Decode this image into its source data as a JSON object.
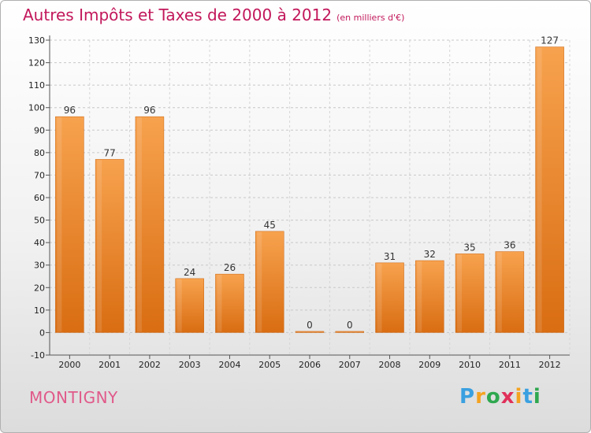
{
  "chart_data": {
    "type": "bar",
    "title": "Autres Impôts et Taxes de 2000 à 2012",
    "subtitle": "(en milliers d'€)",
    "categories": [
      "2000",
      "2001",
      "2002",
      "2003",
      "2004",
      "2005",
      "2006",
      "2007",
      "2008",
      "2009",
      "2010",
      "2011",
      "2012"
    ],
    "values": [
      96,
      77,
      96,
      24,
      26,
      45,
      0,
      0,
      31,
      32,
      35,
      36,
      127
    ],
    "ylim": [
      -10,
      130
    ],
    "yticks": [
      -10,
      0,
      10,
      20,
      30,
      40,
      50,
      60,
      70,
      80,
      90,
      100,
      110,
      120,
      130
    ],
    "grid": true,
    "bar_color": "#f0903a"
  },
  "place_name": "MONTIGNY",
  "logo": {
    "letters": [
      "P",
      "r",
      "o",
      "x",
      "i",
      "t",
      "i"
    ],
    "colors": [
      "#3aa0e0",
      "#f4a321",
      "#2fa84f",
      "#e0305a",
      "#f4a321",
      "#3aa0e0",
      "#2fa84f"
    ]
  }
}
